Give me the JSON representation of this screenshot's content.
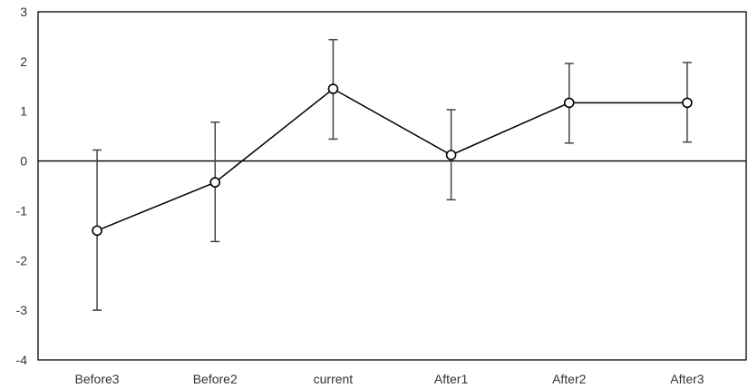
{
  "chart_data": {
    "type": "line",
    "title": "",
    "xlabel": "",
    "ylabel": "",
    "categories": [
      "Before3",
      "Before2",
      "current",
      "After1",
      "After2",
      "After3"
    ],
    "ylim": [
      -4,
      3
    ],
    "yticks": [
      3,
      2,
      1,
      0,
      -1,
      -2,
      -3,
      -4
    ],
    "grid": false,
    "legend": "none",
    "series": [
      {
        "values": [
          -1.4,
          -0.43,
          1.45,
          0.12,
          1.17,
          1.17
        ],
        "error_low": [
          -3.0,
          -1.62,
          0.44,
          -0.78,
          0.36,
          0.38
        ],
        "error_high": [
          0.22,
          0.78,
          2.44,
          1.03,
          1.96,
          1.98
        ]
      }
    ],
    "colors": {
      "line": "#000000",
      "marker_fill": "#ffffff",
      "error_bar": "#444444",
      "zero_line": "#000000"
    }
  }
}
